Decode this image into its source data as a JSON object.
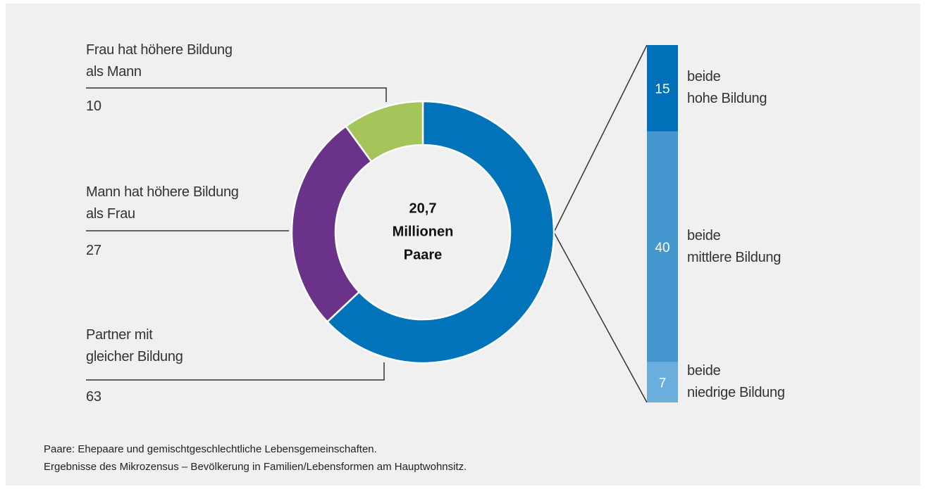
{
  "chart_data": [
    {
      "type": "pie",
      "categories": [
        "Partner mit\ngleicher Bildung",
        "Mann hat höhere Bildung\nals Frau",
        "Frau hat höhere Bildung\nals Mann"
      ],
      "values": [
        63,
        27,
        10
      ],
      "colors": [
        "#0073bb",
        "#6a3389",
        "#a5c45a"
      ],
      "donut": true,
      "center_label": [
        "20,7",
        "Millionen",
        "Paare"
      ]
    },
    {
      "type": "stacked_bar",
      "categories": [
        "beide\nhohe Bildung",
        "beide\nmittlere Bildung",
        "beide\nniedrige Bildung"
      ],
      "values": [
        15,
        40,
        7
      ],
      "colors": [
        "#0070b8",
        "#4597d0",
        "#6aaede"
      ]
    }
  ],
  "notes": [
    "Paare: Ehepaare und gemischtgeschlechtliche Lebensgemeinschaften.",
    "Ergebnisse des Mikrozensus – Bevölkerung in Familien/Lebensformen am Hauptwohnsitz."
  ]
}
